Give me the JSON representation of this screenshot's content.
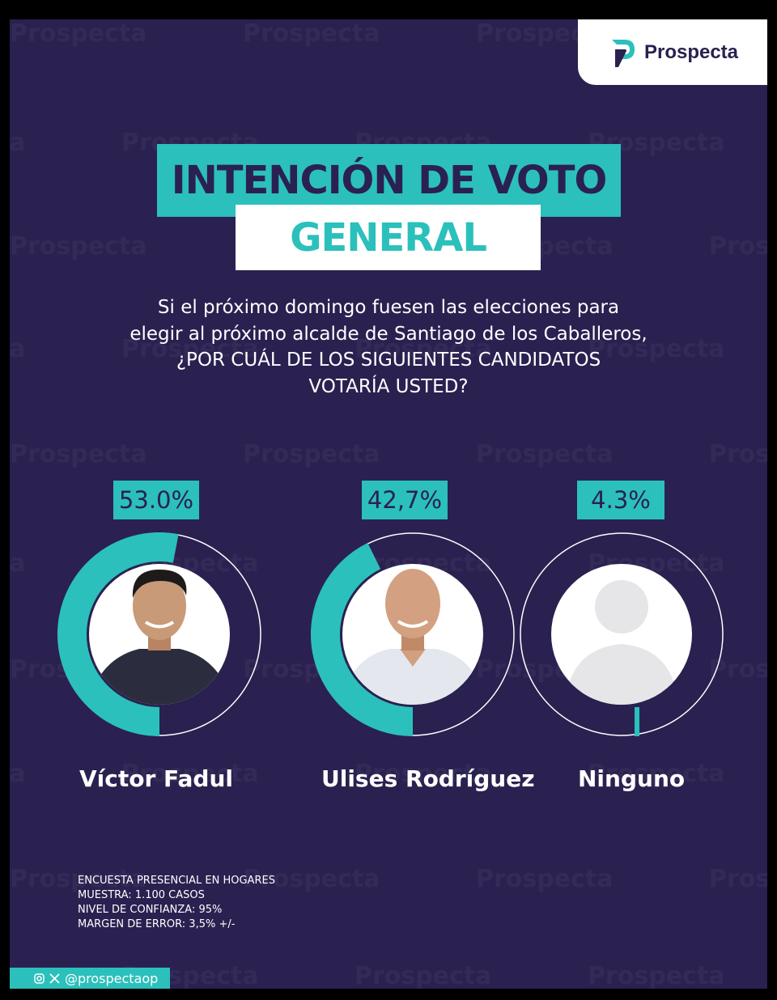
{
  "brand": {
    "name": "Prospecta",
    "watermark": "Prospecta"
  },
  "title": {
    "line1": "INTENCIÓN DE VOTO",
    "line2": "GENERAL"
  },
  "question": [
    "Si el próximo domingo fuesen las elecciones para",
    "elegir al próximo alcalde de Santiago de los Caballeros,",
    "¿POR CUÁL DE LOS SIGUIENTES CANDIDATOS",
    "VOTARÍA USTED?"
  ],
  "chart_data": {
    "type": "pie",
    "categories": [
      "Víctor Fadul",
      "Ulises Rodríguez",
      "Ninguno"
    ],
    "values": [
      53.0,
      42.7,
      4.3
    ],
    "value_labels": [
      "53.0%",
      "42,7%",
      "4.3%"
    ],
    "unit": "%"
  },
  "footnotes": [
    "ENCUESTA PRESENCIAL EN HOGARES",
    "MUESTRA: 1.100 CASOS",
    "NIVEL DE CONFIANZA: 95%",
    "MARGEN DE ERROR: 3,5% +/-"
  ],
  "social": {
    "handle": "@prospectaop"
  },
  "colors": {
    "background": "#2a2150",
    "accent": "#2bc0bb",
    "white": "#ffffff",
    "skin": "#c99a78"
  }
}
